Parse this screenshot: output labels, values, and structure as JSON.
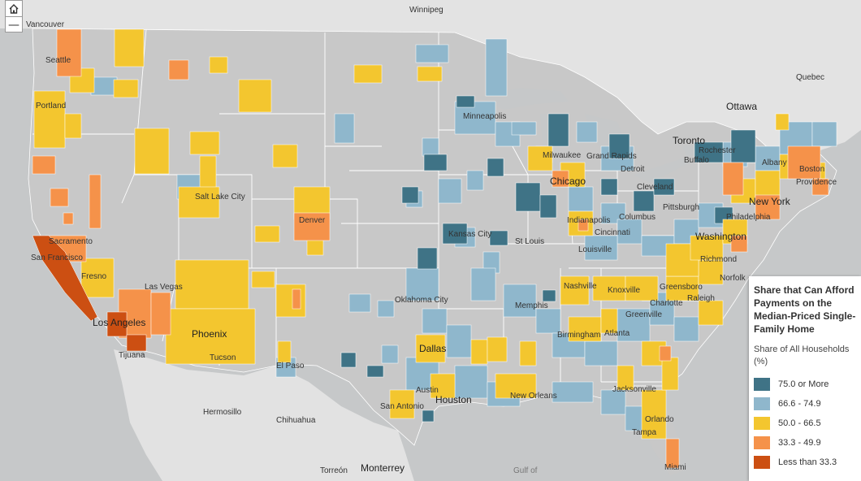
{
  "controls": {
    "home_icon": "home-icon",
    "zoom_out_label": "—"
  },
  "legend": {
    "title": "Share that Can Afford Payments on the Median-Priced Single-Family Home",
    "subtitle": "Share of All Households (%)",
    "classes": [
      {
        "label": "75.0 or More",
        "color": "#3f7386"
      },
      {
        "label": "66.6 - 74.9",
        "color": "#8fb7cc"
      },
      {
        "label": "50.0 - 66.5",
        "color": "#f3c62f"
      },
      {
        "label": "33.3 - 49.9",
        "color": "#f5924a"
      },
      {
        "label": "Less than 33.3",
        "color": "#cc4f12"
      }
    ]
  },
  "cities": {
    "winnipeg": "Winnipeg",
    "vancouver": "Vancouver",
    "quebec": "Quebec",
    "ottawa": "Ottawa",
    "toronto": "Toronto",
    "seattle": "Seattle",
    "portland": "Portland",
    "minneapolis": "Minneapolis",
    "milwaukee": "Milwaukee",
    "grand_rapids": "Grand Rapids",
    "detroit": "Detroit",
    "rochester": "Rochester",
    "buffalo": "Buffalo",
    "albany": "Albany",
    "boston": "Boston",
    "providence": "Providence",
    "chicago": "Chicago",
    "cleveland": "Cleveland",
    "pittsburgh": "Pittsburgh",
    "new_york": "New York",
    "philadelphia": "Philadelphia",
    "washington": "Washington",
    "richmond": "Richmond",
    "norfolk": "Norfolk",
    "salt_lake_city": "Salt Lake City",
    "denver": "Denver",
    "kansas_city": "Kansas City",
    "st_louis": "St Louis",
    "indianapolis": "Indianapolis",
    "cincinnati": "Cincinnati",
    "columbus": "Columbus",
    "louisville": "Louisville",
    "sacramento": "Sacramento",
    "san_francisco": "San Francisco",
    "fresno": "Fresno",
    "las_vegas": "Las Vegas",
    "los_angeles": "Los Angeles",
    "tijuana": "Tijuana",
    "phoenix": "Phoenix",
    "tucson": "Tucson",
    "el_paso": "El Paso",
    "oklahoma_city": "Oklahoma City",
    "memphis": "Memphis",
    "nashville": "Nashville",
    "knoxville": "Knoxville",
    "greensboro": "Greensboro",
    "raleigh": "Raleigh",
    "charlotte": "Charlotte",
    "greenville": "Greenville",
    "birmingham": "Birmingham",
    "atlanta": "Atlanta",
    "dallas": "Dallas",
    "austin": "Austin",
    "houston": "Houston",
    "san_antonio": "San Antonio",
    "new_orleans": "New Orleans",
    "jacksonville": "Jacksonville",
    "orlando": "Orlando",
    "tampa": "Tampa",
    "miami": "Miami",
    "hermosillo": "Hermosillo",
    "chihuahua": "Chihuahua",
    "monterrey": "Monterrey",
    "torreon": "Torreón",
    "gulf_of": "Gulf of"
  }
}
